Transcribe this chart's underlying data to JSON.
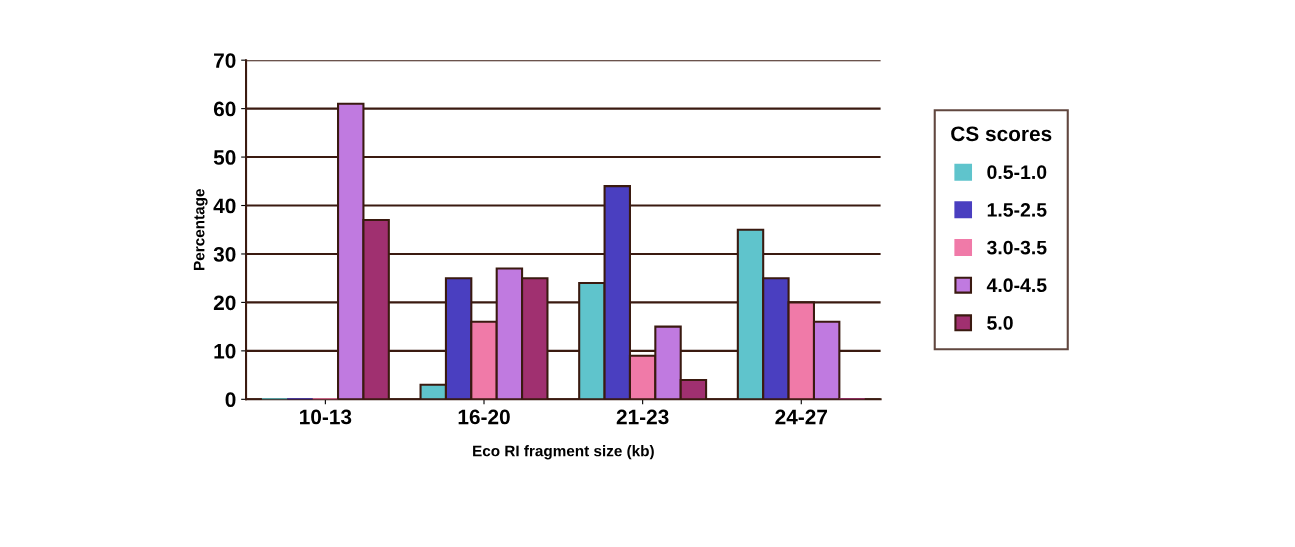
{
  "chart_data": {
    "type": "bar",
    "xlabel": "Eco RI fragment size (kb)",
    "ylabel": "Percentage",
    "legend_title": "CS scores",
    "categories": [
      "10-13",
      "16-20",
      "21-23",
      "24-27"
    ],
    "series": [
      {
        "name": "0.5-1.0",
        "color": "#5fc4cc",
        "values": [
          0,
          3,
          24,
          35
        ]
      },
      {
        "name": "1.5-2.5",
        "color": "#4a3fc0",
        "values": [
          0,
          25,
          44,
          25
        ]
      },
      {
        "name": "3.0-3.5",
        "color": "#f07aa8",
        "values": [
          0,
          16,
          9,
          20
        ]
      },
      {
        "name": "4.0-4.5",
        "color": "#c07ae0",
        "values": [
          61,
          27,
          15,
          16
        ]
      },
      {
        "name": "5.0",
        "color": "#a03070",
        "values": [
          37,
          25,
          4,
          0
        ]
      }
    ],
    "ylim": [
      0,
      70
    ],
    "yticks": [
      0,
      10,
      20,
      30,
      40,
      50,
      60,
      70
    ],
    "grid": "y",
    "legend": "right"
  }
}
